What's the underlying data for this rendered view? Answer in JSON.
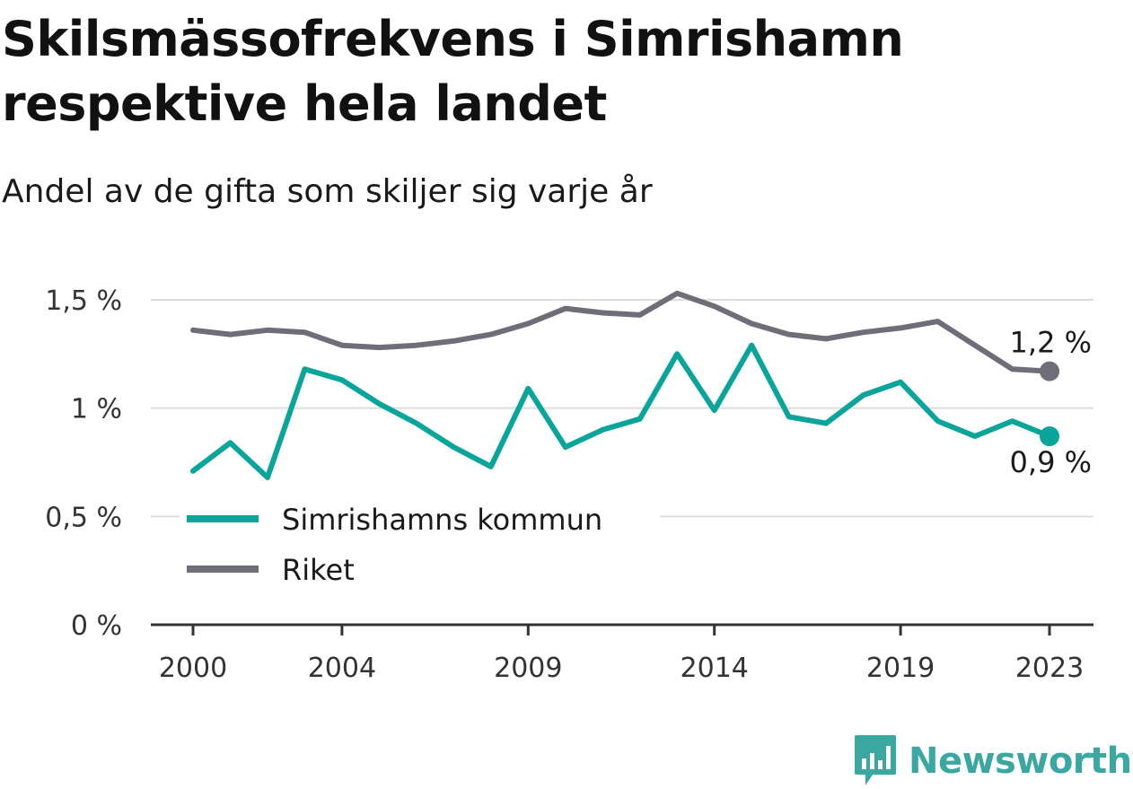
{
  "title": "Skilsmässofrekvens i Simrishamn respektive hela landet",
  "subtitle": "Andel av de gifta som skiljer sig varje år",
  "brand": {
    "name": "Newsworthy",
    "icon": "newsworthy-logo-icon",
    "color": "#3aa8a0"
  },
  "colors": {
    "simrishamn": "#0aa59a",
    "riket": "#6e6d78",
    "grid": "#dcdcdc",
    "axis": "#333333"
  },
  "chart_data": {
    "type": "line",
    "x": [
      2000,
      2001,
      2002,
      2003,
      2004,
      2005,
      2006,
      2007,
      2008,
      2009,
      2010,
      2011,
      2012,
      2013,
      2014,
      2015,
      2016,
      2017,
      2018,
      2019,
      2020,
      2021,
      2022,
      2023
    ],
    "x_ticks": [
      2000,
      2004,
      2009,
      2014,
      2019,
      2023
    ],
    "x_tick_labels": [
      "2000",
      "2004",
      "2009",
      "2014",
      "2019",
      "2023"
    ],
    "y_ticks": [
      0,
      0.5,
      1,
      1.5
    ],
    "y_tick_labels": [
      "0 %",
      "0,5 %",
      "1 %",
      "1,5 %"
    ],
    "ylim": [
      0,
      1.5
    ],
    "grid": true,
    "legend_position": "bottom-left",
    "series": [
      {
        "name": "Simrishamns kommun",
        "color": "#0aa59a",
        "end_label": "0,9 %",
        "values": [
          0.71,
          0.84,
          0.68,
          1.18,
          1.13,
          1.02,
          0.93,
          0.82,
          0.73,
          1.09,
          0.82,
          0.9,
          0.95,
          1.25,
          0.99,
          1.29,
          0.96,
          0.93,
          1.06,
          1.12,
          0.94,
          0.87,
          0.94,
          0.87
        ]
      },
      {
        "name": "Riket",
        "color": "#6e6d78",
        "end_label": "1,2 %",
        "values": [
          1.36,
          1.34,
          1.36,
          1.35,
          1.29,
          1.28,
          1.29,
          1.31,
          1.34,
          1.39,
          1.46,
          1.44,
          1.43,
          1.53,
          1.47,
          1.39,
          1.34,
          1.32,
          1.35,
          1.37,
          1.4,
          1.29,
          1.18,
          1.17
        ]
      }
    ]
  }
}
